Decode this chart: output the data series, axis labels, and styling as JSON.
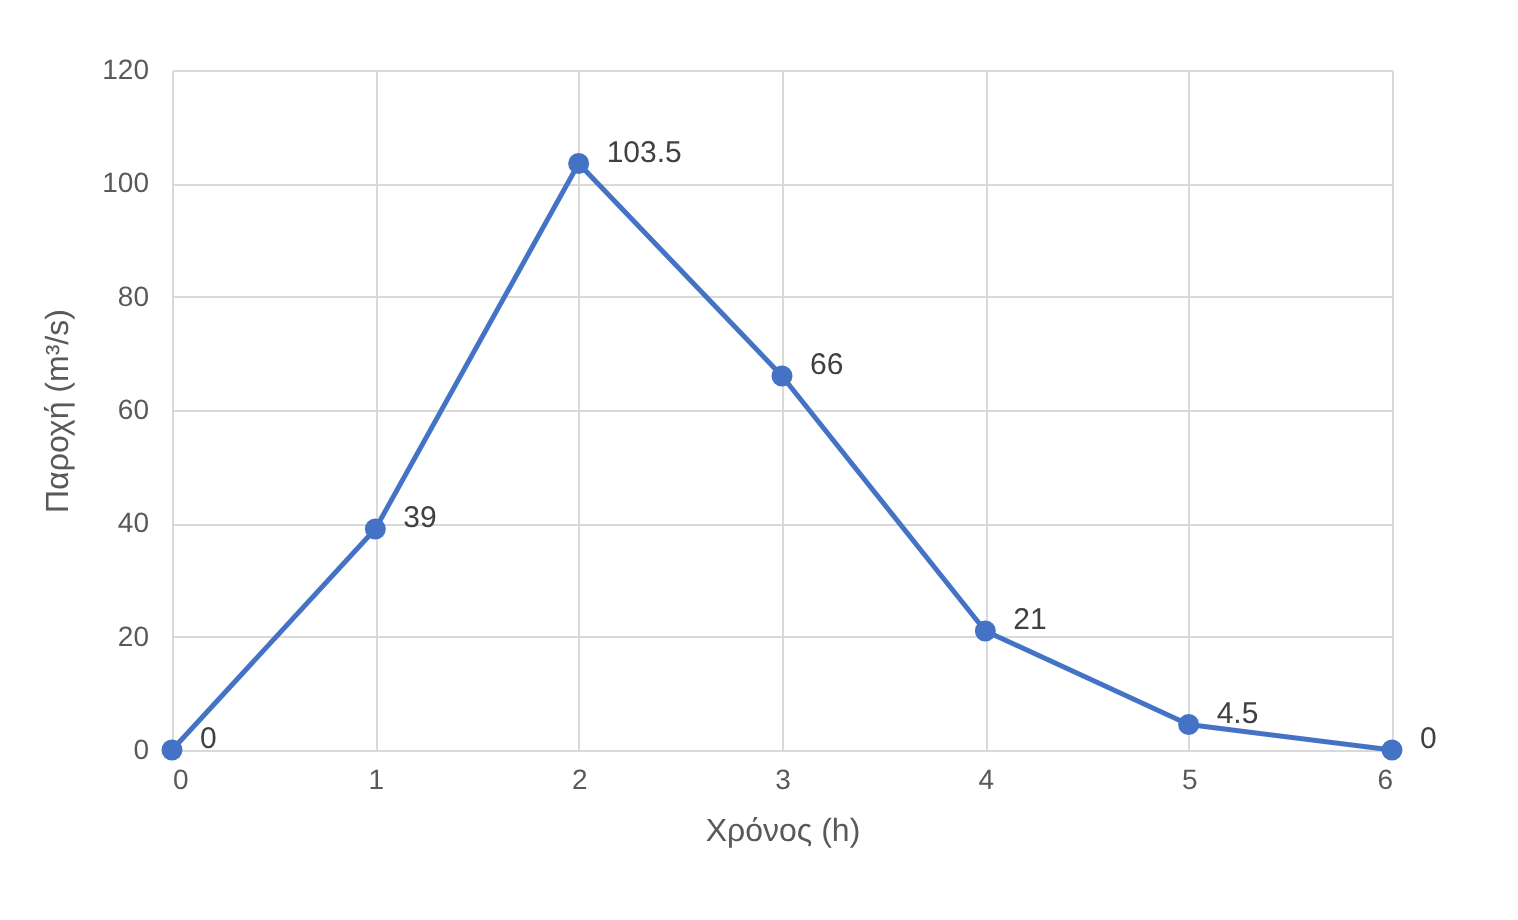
{
  "chart_data": {
    "type": "line",
    "xlabel": "Χρόνος (h)",
    "ylabel": "Παροχή (m³/s)",
    "x": [
      0,
      1,
      2,
      3,
      4,
      5,
      6
    ],
    "series": [
      {
        "color": "#4472c4",
        "values": [
          0,
          39,
          103.5,
          66,
          21,
          4.5,
          0
        ]
      }
    ],
    "xlim": [
      0,
      6
    ],
    "xticks": [
      0,
      1,
      2,
      3,
      4,
      5,
      6
    ],
    "ylim": [
      0,
      120
    ],
    "yticks": [
      0,
      20,
      40,
      60,
      80,
      100,
      120
    ],
    "grid": true,
    "marker": "circle",
    "line_style": "solid",
    "data_labels": true
  }
}
